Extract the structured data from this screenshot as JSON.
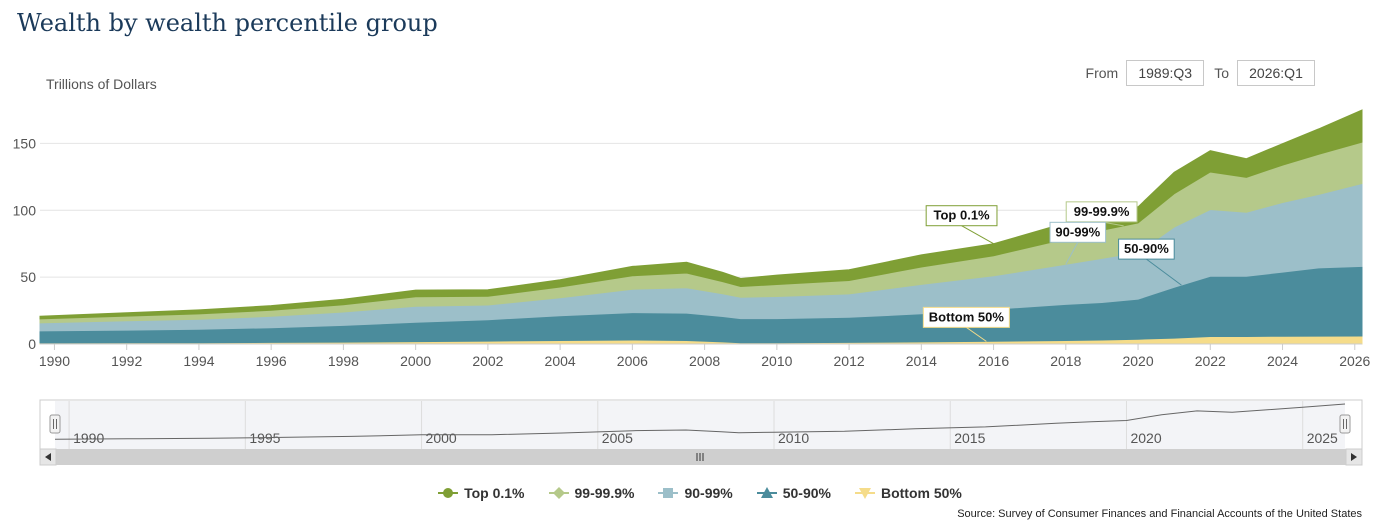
{
  "title": "Wealth by wealth percentile group",
  "range": {
    "from_label": "From",
    "from_value": "1989:Q3",
    "to_label": "To",
    "to_value": "2026:Q1"
  },
  "source": "Source: Survey of Consumer Finances and Financial Accounts of the United States",
  "legend": [
    {
      "name": "Top 0.1%",
      "color": "#7f9f35",
      "icon": "circle-marker-icon"
    },
    {
      "name": "99-99.9%",
      "color": "#b5c98a",
      "icon": "diamond-marker-icon"
    },
    {
      "name": "90-99%",
      "color": "#9cbfc9",
      "icon": "square-marker-icon"
    },
    {
      "name": "50-90%",
      "color": "#4b8c9c",
      "icon": "triangle-marker-icon"
    },
    {
      "name": "Bottom 50%",
      "color": "#f5dc8a",
      "icon": "triangle-down-marker-icon"
    }
  ],
  "chart_data": {
    "type": "area",
    "stacked": true,
    "ylabel": "Trillions of Dollars",
    "yticks": [
      0,
      50,
      100,
      150
    ],
    "ylim": [
      0,
      175
    ],
    "xlim": [
      1989.6,
      2026.2
    ],
    "xticks": [
      "1990",
      "1992",
      "1994",
      "1996",
      "1998",
      "2000",
      "2002",
      "2004",
      "2006",
      "2008",
      "2010",
      "2012",
      "2014",
      "2016",
      "2018",
      "2020",
      "2022",
      "2024",
      "2026"
    ],
    "navigator_ticks": [
      "1990",
      "1995",
      "2000",
      "2005",
      "2010",
      "2015",
      "2020",
      "2025"
    ],
    "grid": true,
    "legend_position": "bottom",
    "x": [
      1989.6,
      1992,
      1994,
      1996,
      1998,
      2000,
      2002,
      2004,
      2006,
      2007.5,
      2008.5,
      2009,
      2010,
      2012,
      2014,
      2016,
      2018,
      2019,
      2020,
      2021,
      2022,
      2023,
      2024,
      2025,
      2026.2
    ],
    "series": [
      {
        "name": "Bottom 50%",
        "values": [
          0.8,
          0.9,
          1,
          1.2,
          1.4,
          1.8,
          2.2,
          2.6,
          3,
          2.6,
          1.6,
          1,
          1,
          1.2,
          1.6,
          2,
          2.6,
          3,
          3.6,
          4.4,
          5.6,
          5.6,
          5.8,
          5.9,
          6
        ]
      },
      {
        "name": "50-90%",
        "values": [
          9,
          9.5,
          10,
          11,
          12.5,
          14.5,
          16,
          18.5,
          20.5,
          20.5,
          19,
          18,
          18,
          18.8,
          21,
          24,
          27,
          28,
          30,
          38,
          45,
          45,
          48,
          51,
          52
        ]
      },
      {
        "name": "90-99%",
        "values": [
          6,
          7,
          7.5,
          8.5,
          10,
          12,
          11,
          13.5,
          17.5,
          19,
          17,
          16,
          16.5,
          17.5,
          22,
          25,
          30,
          33,
          35,
          45,
          50,
          48,
          52,
          55,
          62
        ]
      },
      {
        "name": "99-99.9%",
        "values": [
          3,
          3.5,
          4,
          4.5,
          5.5,
          7,
          6.5,
          8,
          10,
          11,
          9,
          8,
          9,
          10,
          13,
          15,
          19,
          21,
          22,
          25,
          28,
          26,
          28,
          30,
          31
        ]
      },
      {
        "name": "Top 0.1%",
        "values": [
          2,
          2.5,
          3,
          3.5,
          4,
          5,
          4.8,
          5.5,
          7,
          8,
          7,
          6,
          7,
          8,
          9,
          9,
          12,
          12,
          12,
          16,
          16,
          14,
          16,
          19,
          24
        ]
      }
    ],
    "annotations": [
      {
        "label": "Top 0.1%",
        "x": 2016,
        "series": "Top 0.1%"
      },
      {
        "label": "99-99.9%",
        "x": 2019.6,
        "series": "99-99.9%"
      },
      {
        "label": "90-99%",
        "x": 2018,
        "series": "90-99%"
      },
      {
        "label": "50-90%",
        "x": 2021.2,
        "series": "50-90%"
      },
      {
        "label": "Bottom 50%",
        "x": 2015.8,
        "series": "Bottom 50%"
      }
    ]
  }
}
